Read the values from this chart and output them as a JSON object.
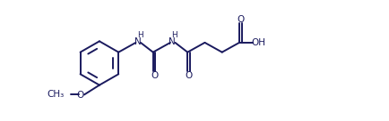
{
  "bg_color": "#ffffff",
  "line_color": "#1a1a5e",
  "text_color": "#1a1a5e",
  "line_width": 1.4,
  "font_size": 7.5,
  "figsize": [
    4.35,
    1.36
  ],
  "dpi": 100,
  "xlim": [
    0,
    43.5
  ],
  "ylim": [
    0,
    13.6
  ]
}
